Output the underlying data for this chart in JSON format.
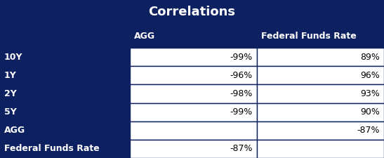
{
  "title": "Correlations",
  "dark_bg": "#0d2060",
  "white_bg": "#ffffff",
  "dark_text": "#ffffff",
  "black_text": "#000000",
  "border_color": "#0d2060",
  "col_headers": [
    "",
    "AGG",
    "Federal Funds Rate"
  ],
  "rows": [
    [
      "10Y",
      "-99%",
      "89%"
    ],
    [
      "1Y",
      "-96%",
      "96%"
    ],
    [
      "2Y",
      "-98%",
      "93%"
    ],
    [
      "5Y",
      "-99%",
      "90%"
    ],
    [
      "AGG",
      "",
      "-87%"
    ],
    [
      "Federal Funds Rate",
      "-87%",
      ""
    ]
  ],
  "title_fontsize": 13,
  "header_fontsize": 9,
  "cell_fontsize": 9,
  "figsize": [
    5.47,
    2.25
  ],
  "dpi": 100
}
